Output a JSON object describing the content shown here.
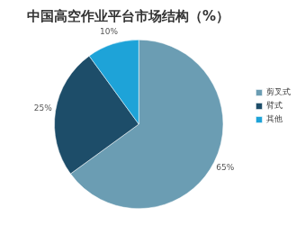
{
  "chart_data": {
    "type": "pie",
    "title": "中国高空作业平台市场结构（%）",
    "categories": [
      "剪叉式",
      "臂式",
      "其他"
    ],
    "values": [
      65,
      25,
      10
    ],
    "value_labels": [
      "65%",
      "25%",
      "10%"
    ],
    "colors": [
      "#6b9db3",
      "#1d4d69",
      "#1ea3d8"
    ],
    "data_labels": true,
    "legend": "right"
  }
}
